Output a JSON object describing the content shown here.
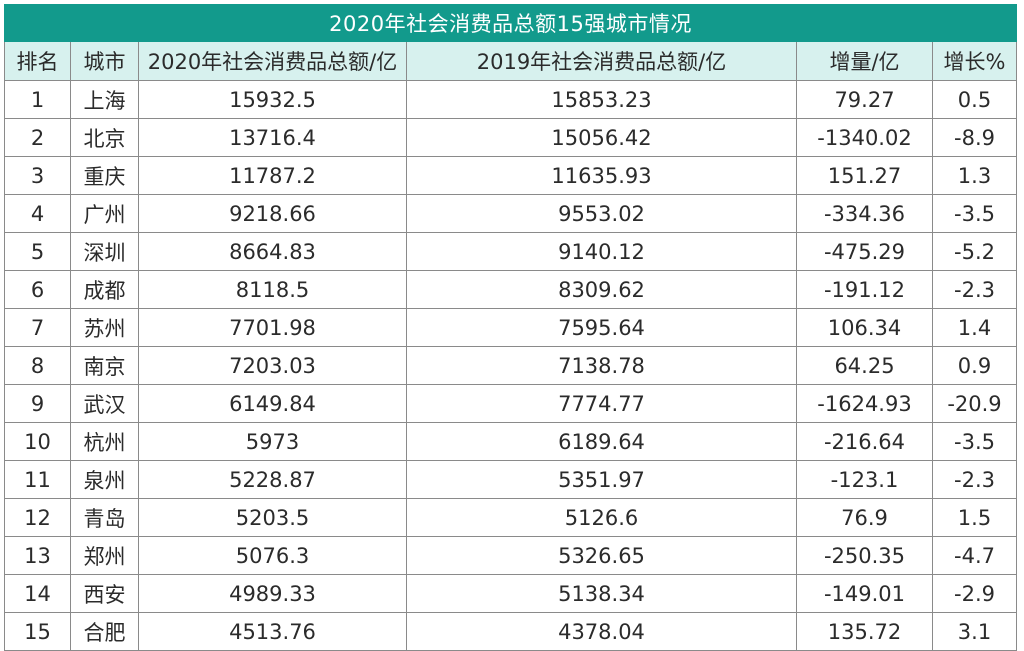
{
  "table": {
    "title": "2020年社会消费品总额15强城市情况",
    "headers": [
      "排名",
      "城市",
      "2020年社会消费品总额/亿",
      "2019年社会消费品总额/亿",
      "增量/亿",
      "增长%"
    ],
    "rows": [
      [
        "1",
        "上海",
        "15932.5",
        "15853.23",
        "79.27",
        "0.5"
      ],
      [
        "2",
        "北京",
        "13716.4",
        "15056.42",
        "-1340.02",
        "-8.9"
      ],
      [
        "3",
        "重庆",
        "11787.2",
        "11635.93",
        "151.27",
        "1.3"
      ],
      [
        "4",
        "广州",
        "9218.66",
        "9553.02",
        "-334.36",
        "-3.5"
      ],
      [
        "5",
        "深圳",
        "8664.83",
        "9140.12",
        "-475.29",
        "-5.2"
      ],
      [
        "6",
        "成都",
        "8118.5",
        "8309.62",
        "-191.12",
        "-2.3"
      ],
      [
        "7",
        "苏州",
        "7701.98",
        "7595.64",
        "106.34",
        "1.4"
      ],
      [
        "8",
        "南京",
        "7203.03",
        "7138.78",
        "64.25",
        "0.9"
      ],
      [
        "9",
        "武汉",
        "6149.84",
        "7774.77",
        "-1624.93",
        "-20.9"
      ],
      [
        "10",
        "杭州",
        "5973",
        "6189.64",
        "-216.64",
        "-3.5"
      ],
      [
        "11",
        "泉州",
        "5228.87",
        "5351.97",
        "-123.1",
        "-2.3"
      ],
      [
        "12",
        "青岛",
        "5203.5",
        "5126.6",
        "76.9",
        "1.5"
      ],
      [
        "13",
        "郑州",
        "5076.3",
        "5326.65",
        "-250.35",
        "-4.7"
      ],
      [
        "14",
        "西安",
        "4989.33",
        "5138.34",
        "-149.01",
        "-2.9"
      ],
      [
        "15",
        "合肥",
        "4513.76",
        "4378.04",
        "135.72",
        "3.1"
      ]
    ]
  },
  "colors": {
    "title_bg": "#129a8c",
    "header_bg": "#d7f1ee"
  }
}
